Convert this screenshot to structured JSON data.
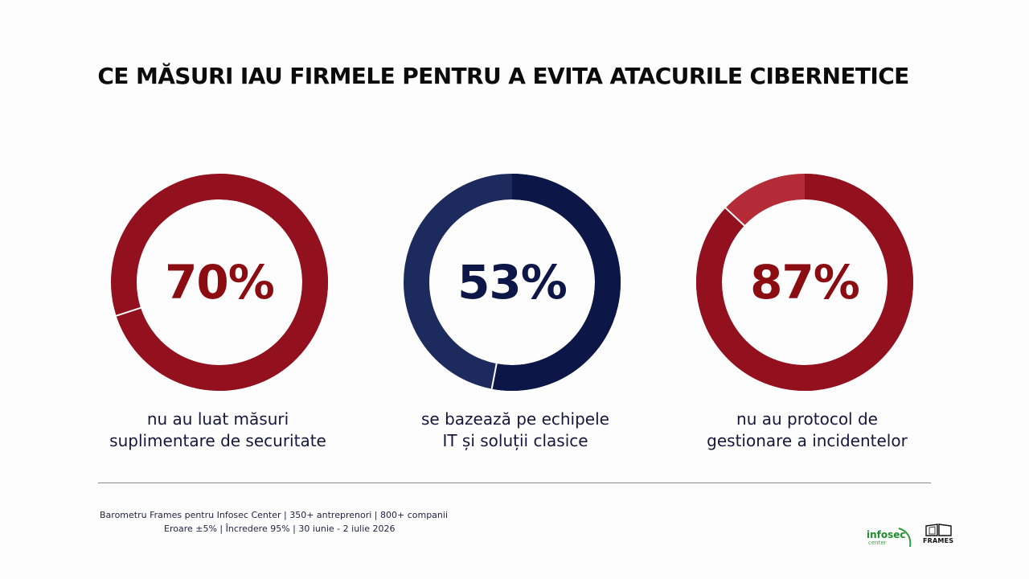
{
  "title": "CE MĂSURI IAU FIRMELE PENTRU A EVITA ATACURILE CIBERNETICE",
  "chart_data": [
    {
      "type": "pie",
      "value": 70,
      "percent_label": "70%",
      "caption_lines": [
        "nu au luat măsuri",
        "suplimentare de securitate"
      ],
      "main_color": "#93101f",
      "remainder_color": "#93101f",
      "text_color": "#8b0d12"
    },
    {
      "type": "pie",
      "value": 53,
      "percent_label": "53%",
      "caption_lines": [
        "se bazează pe echipele",
        "IT și soluții clasice"
      ],
      "main_color": "#0c1748",
      "remainder_color": "#1d2a5e",
      "text_color": "#0c1748"
    },
    {
      "type": "pie",
      "value": 87,
      "percent_label": "87%",
      "caption_lines": [
        "nu au protocol de",
        "gestionare a incidentelor"
      ],
      "main_color": "#93101f",
      "remainder_color": "#b52c38",
      "text_color": "#8b0d12"
    }
  ],
  "source": {
    "line1": "Barometru Frames pentru Infosec Center | 350+ antreprenori | 800+ companii",
    "line2": "Eroare ±5% | Încredere 95% | 30 iunie - 2 iulie 2026"
  },
  "logos": {
    "infosec": "infosec",
    "infosec_sub": "center",
    "frames": "FRAMES"
  }
}
